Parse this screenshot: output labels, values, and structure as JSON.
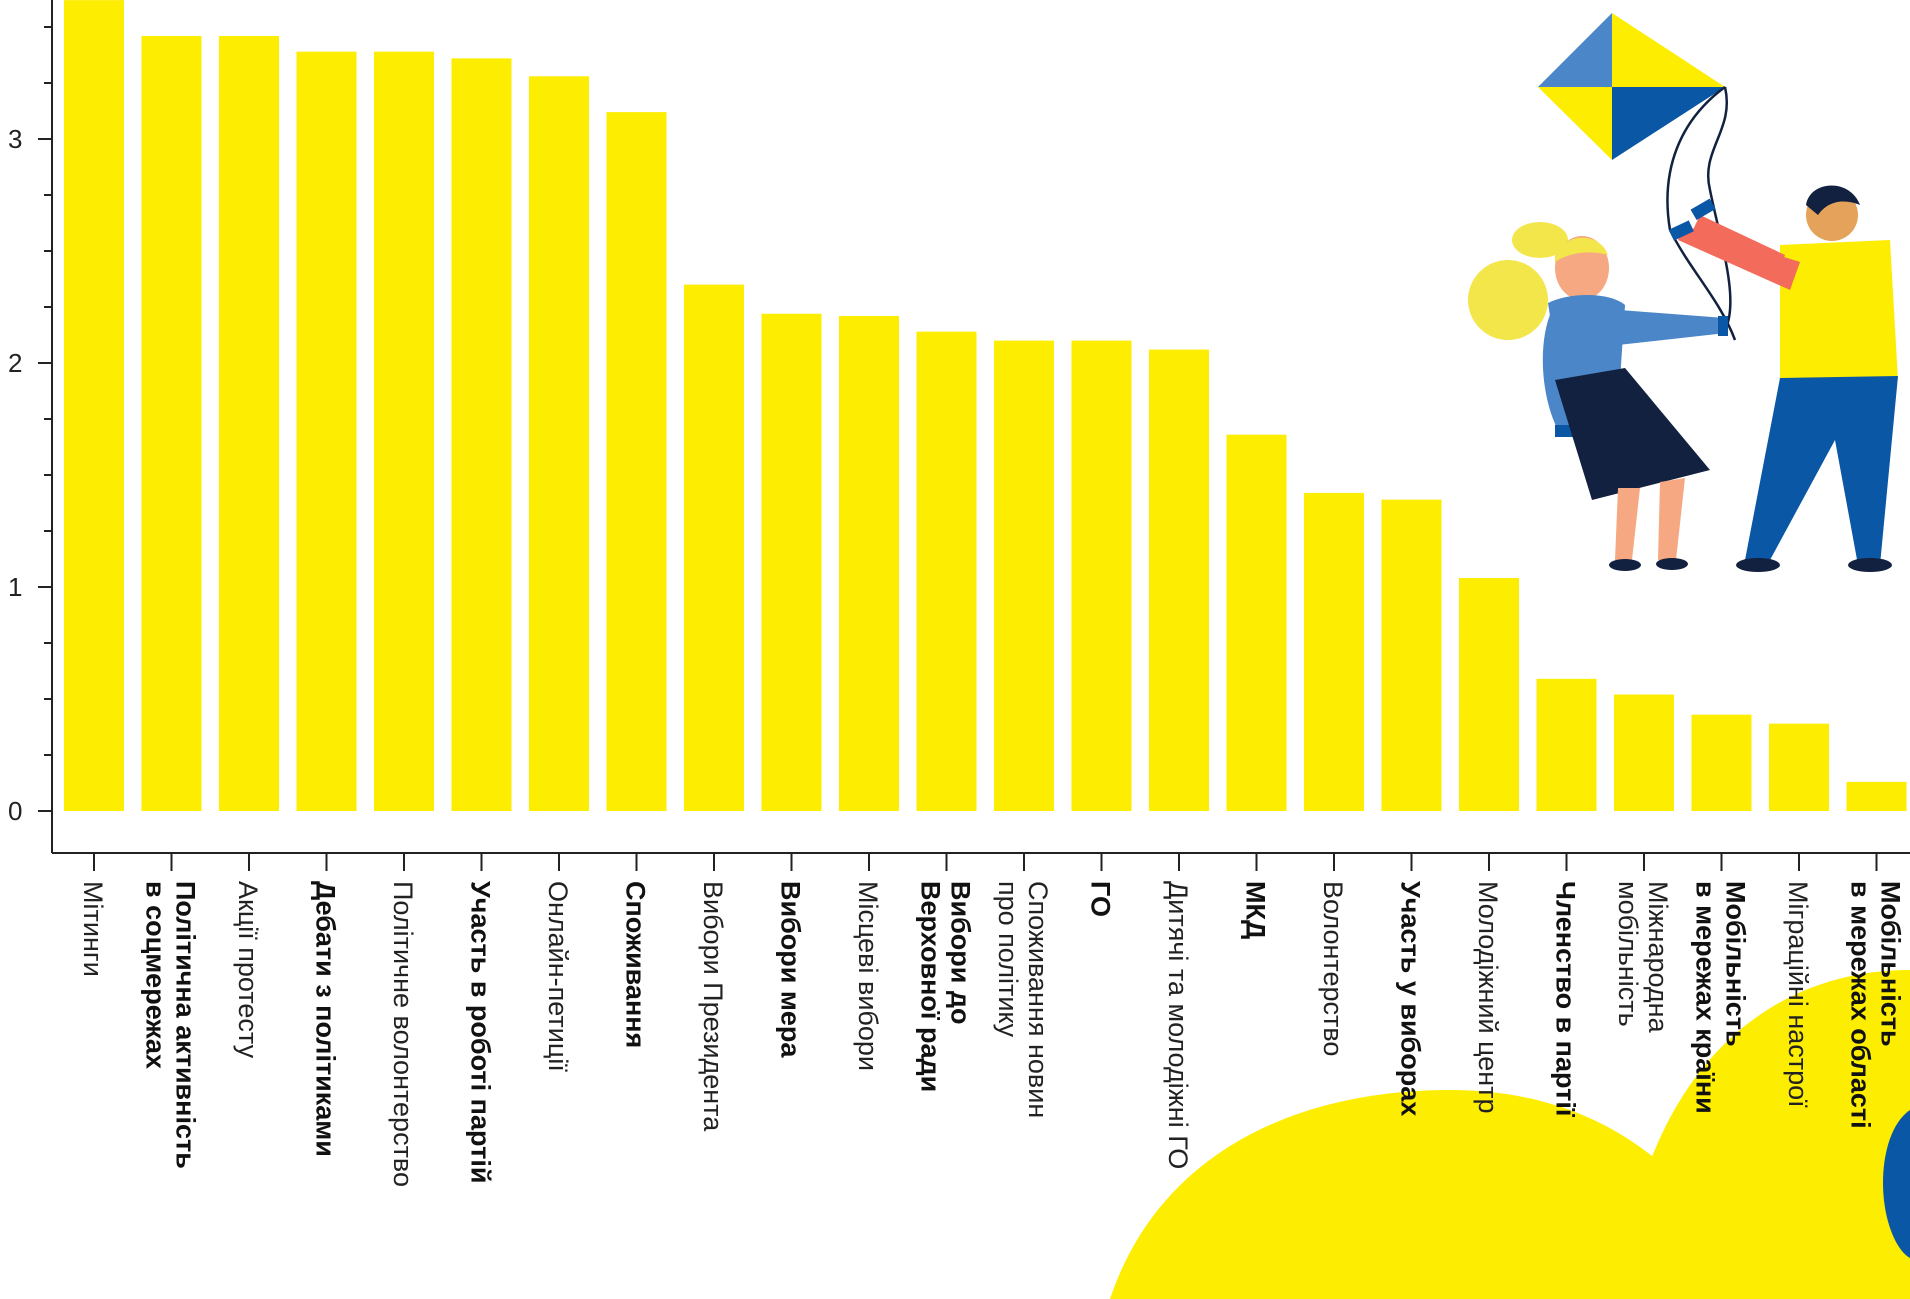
{
  "colors": {
    "bar": "#FDED00",
    "axis": "#222222",
    "blob": "#FDED00",
    "blue_accent": "#0A57A5",
    "text": "#222222"
  },
  "chart_data": {
    "type": "bar",
    "orientation": "vertical",
    "title": "",
    "xlabel": "",
    "ylabel": "",
    "ylim": [
      0,
      3.6
    ],
    "yticks": [
      0,
      1,
      2,
      3
    ],
    "grid": false,
    "categories": [
      "Мітинги",
      "Політична активність в соцмережах",
      "Акції протесту",
      "Дебати з політиками",
      "Політичне волонтерство",
      "Участь в роботі партій",
      "Онлайн-петиції",
      "Споживання",
      "Вибори Президента",
      "Вибори мера",
      "Місцеві вибори",
      "Вибори до Верховної ради",
      "Споживання новин про політику",
      "ГО",
      "Дитячі та молодіжні ГО",
      "МКД",
      "Волонтерство",
      "Участь у виборах",
      "Молодіжний центр",
      "Членство в партії",
      "Міжнародна мобільність",
      "Мобільність в мережах країни",
      "Міграційні настрої",
      "Мобільність в мережах області"
    ],
    "label_lines": [
      [
        "Мітинги"
      ],
      [
        "Політична активність",
        "в соцмережах"
      ],
      [
        "Акції протесту"
      ],
      [
        "Дебати з політиками"
      ],
      [
        "Політичне волонтерство"
      ],
      [
        "Участь в роботі партій"
      ],
      [
        "Онлайн-петиції"
      ],
      [
        "Споживання"
      ],
      [
        "Вибори Президента"
      ],
      [
        "Вибори мера"
      ],
      [
        "Місцеві вибори"
      ],
      [
        "Вибори до",
        "Верховної ради"
      ],
      [
        "Споживання новин",
        "про політику"
      ],
      [
        "ГО"
      ],
      [
        "Дитячі та молодіжні ГО"
      ],
      [
        "МКД"
      ],
      [
        "Волонтерство"
      ],
      [
        "Участь у виборах"
      ],
      [
        "Молодіжний центр"
      ],
      [
        "Членство в партії"
      ],
      [
        "Міжнародна",
        "мобільність"
      ],
      [
        "Мобільність",
        "в мережах країни"
      ],
      [
        "Міграційні настрої"
      ],
      [
        "Мобільність",
        "в мережах області"
      ]
    ],
    "bold": [
      false,
      true,
      false,
      true,
      false,
      true,
      false,
      true,
      false,
      true,
      false,
      true,
      false,
      true,
      false,
      true,
      false,
      true,
      false,
      true,
      false,
      true,
      false,
      true
    ],
    "values": [
      3.62,
      3.46,
      3.46,
      3.39,
      3.39,
      3.36,
      3.28,
      3.12,
      2.35,
      2.22,
      2.21,
      2.14,
      2.1,
      2.1,
      2.06,
      1.68,
      1.42,
      1.39,
      1.04,
      0.59,
      0.52,
      0.43,
      0.39,
      0.13
    ]
  }
}
